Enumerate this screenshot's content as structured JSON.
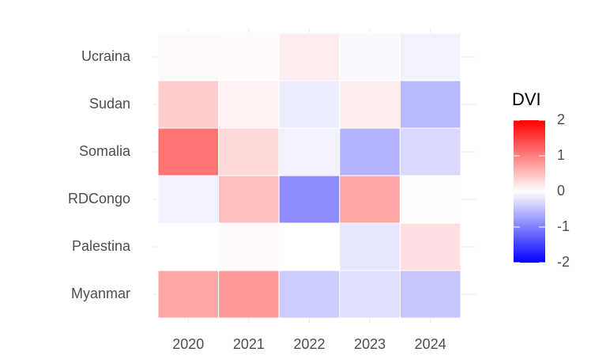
{
  "chart_data": {
    "type": "heatmap",
    "x": [
      "2020",
      "2021",
      "2022",
      "2023",
      "2024"
    ],
    "y": [
      "Ucraina",
      "Sudan",
      "Somalia",
      "RDCongo",
      "Palestina",
      "Myanmar"
    ],
    "values": [
      [
        0.05,
        0.03,
        0.15,
        -0.05,
        -0.1
      ],
      [
        0.4,
        0.1,
        -0.15,
        0.15,
        -0.55
      ],
      [
        1.1,
        0.3,
        -0.1,
        -0.6,
        -0.3
      ],
      [
        -0.1,
        0.5,
        -0.9,
        0.7,
        0.02
      ],
      [
        0,
        0.03,
        0,
        -0.2,
        0.25
      ],
      [
        0.7,
        0.8,
        -0.4,
        -0.25,
        -0.45
      ]
    ],
    "legend_title": "DVI",
    "colorbar_lim": [
      -2,
      2
    ],
    "colorbar_ticks": [
      2,
      1,
      0,
      -1,
      -2
    ],
    "colors": {
      "low": "#0000ff",
      "mid": "#ffffff",
      "high": "#ff0000"
    },
    "grid": true
  }
}
